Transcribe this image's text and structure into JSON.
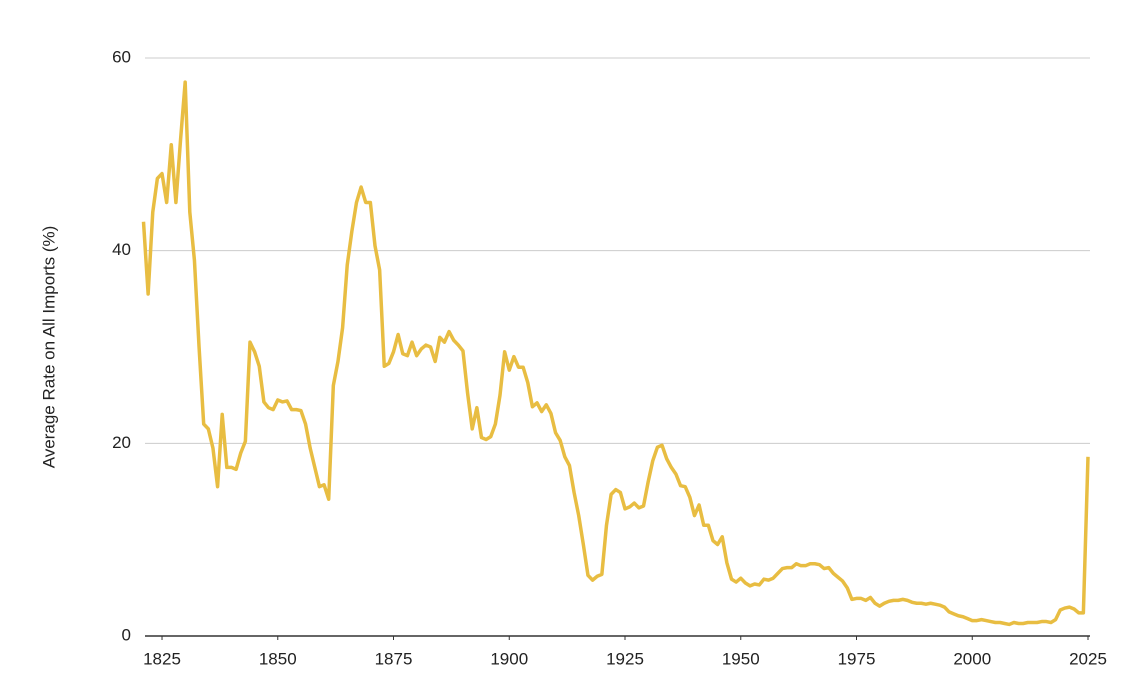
{
  "chart_data": {
    "type": "line",
    "y_label": "Average Rate on All Imports (%)",
    "x": [
      1821,
      1822,
      1823,
      1824,
      1825,
      1826,
      1827,
      1828,
      1829,
      1830,
      1831,
      1832,
      1833,
      1834,
      1835,
      1836,
      1837,
      1838,
      1839,
      1840,
      1841,
      1842,
      1843,
      1844,
      1845,
      1846,
      1847,
      1848,
      1849,
      1850,
      1851,
      1852,
      1853,
      1854,
      1855,
      1856,
      1857,
      1858,
      1859,
      1860,
      1861,
      1862,
      1863,
      1864,
      1865,
      1866,
      1867,
      1868,
      1869,
      1870,
      1871,
      1872,
      1873,
      1874,
      1875,
      1876,
      1877,
      1878,
      1879,
      1880,
      1881,
      1882,
      1883,
      1884,
      1885,
      1886,
      1887,
      1888,
      1889,
      1890,
      1891,
      1892,
      1893,
      1894,
      1895,
      1896,
      1897,
      1898,
      1899,
      1900,
      1901,
      1902,
      1903,
      1904,
      1905,
      1906,
      1907,
      1908,
      1909,
      1910,
      1911,
      1912,
      1913,
      1914,
      1915,
      1916,
      1917,
      1918,
      1919,
      1920,
      1921,
      1922,
      1923,
      1924,
      1925,
      1926,
      1927,
      1928,
      1929,
      1930,
      1931,
      1932,
      1933,
      1934,
      1935,
      1936,
      1937,
      1938,
      1939,
      1940,
      1941,
      1942,
      1943,
      1944,
      1945,
      1946,
      1947,
      1948,
      1949,
      1950,
      1951,
      1952,
      1953,
      1954,
      1955,
      1956,
      1957,
      1958,
      1959,
      1960,
      1961,
      1962,
      1963,
      1964,
      1965,
      1966,
      1967,
      1968,
      1969,
      1970,
      1971,
      1972,
      1973,
      1974,
      1975,
      1976,
      1977,
      1978,
      1979,
      1980,
      1981,
      1982,
      1983,
      1984,
      1985,
      1986,
      1987,
      1988,
      1989,
      1990,
      1991,
      1992,
      1993,
      1994,
      1995,
      1996,
      1997,
      1998,
      1999,
      2000,
      2001,
      2002,
      2003,
      2004,
      2005,
      2006,
      2007,
      2008,
      2009,
      2010,
      2011,
      2012,
      2013,
      2014,
      2015,
      2016,
      2017,
      2018,
      2019,
      2020,
      2021,
      2022,
      2023,
      2024,
      2025
    ],
    "values": [
      43,
      35.5,
      44,
      47.5,
      48,
      45,
      51,
      45,
      51.5,
      57.5,
      44,
      39,
      30,
      22,
      21.5,
      19.5,
      15.5,
      23,
      17.5,
      17.5,
      17.3,
      19,
      20.2,
      30.5,
      29.5,
      28,
      24.3,
      23.7,
      23.5,
      24.5,
      24.3,
      24.4,
      23.5,
      23.5,
      23.4,
      22,
      19.5,
      17.5,
      15.5,
      15.7,
      14.2,
      26,
      28.5,
      32,
      38.5,
      42,
      45,
      46.6,
      45,
      45,
      40.5,
      38,
      28,
      28.3,
      29.5,
      31.3,
      29.3,
      29.1,
      30.5,
      29.1,
      29.8,
      30.2,
      30,
      28.5,
      31,
      30.5,
      31.6,
      30.7,
      30.2,
      29.6,
      25.2,
      21.5,
      23.7,
      20.6,
      20.4,
      20.7,
      22,
      25,
      29.5,
      27.6,
      29,
      27.9,
      27.9,
      26.3,
      23.8,
      24.2,
      23.3,
      24,
      23.1,
      21.1,
      20.3,
      18.6,
      17.7,
      14.9,
      12.5,
      9.5,
      6.3,
      5.8,
      6.2,
      6.4,
      11.5,
      14.7,
      15.2,
      14.9,
      13.2,
      13.4,
      13.8,
      13.3,
      13.5,
      16,
      18.2,
      19.6,
      19.8,
      18.4,
      17.5,
      16.8,
      15.6,
      15.5,
      14.4,
      12.5,
      13.6,
      11.5,
      11.5,
      9.9,
      9.5,
      10.3,
      7.6,
      5.9,
      5.6,
      6,
      5.5,
      5.2,
      5.4,
      5.3,
      5.9,
      5.8,
      6,
      6.5,
      7,
      7.1,
      7.1,
      7.5,
      7.3,
      7.3,
      7.5,
      7.5,
      7.4,
      7,
      7.1,
      6.5,
      6.1,
      5.7,
      5,
      3.8,
      3.9,
      3.9,
      3.7,
      4,
      3.4,
      3.1,
      3.4,
      3.6,
      3.7,
      3.7,
      3.8,
      3.7,
      3.5,
      3.4,
      3.4,
      3.3,
      3.4,
      3.3,
      3.2,
      3,
      2.5,
      2.3,
      2.1,
      2,
      1.8,
      1.6,
      1.6,
      1.7,
      1.6,
      1.5,
      1.4,
      1.4,
      1.3,
      1.2,
      1.4,
      1.3,
      1.3,
      1.4,
      1.4,
      1.4,
      1.5,
      1.5,
      1.4,
      1.7,
      2.7,
      2.9,
      3,
      2.8,
      2.4,
      2.4,
      18.6
    ],
    "color": "#e8bd42",
    "xlim": [
      1821,
      2025
    ],
    "ylim": [
      0,
      60
    ],
    "xticks": [
      1825,
      1850,
      1875,
      1900,
      1925,
      1950,
      1975,
      2000,
      2025
    ],
    "yticks": [
      0,
      20,
      40,
      60
    ],
    "grid": true
  }
}
